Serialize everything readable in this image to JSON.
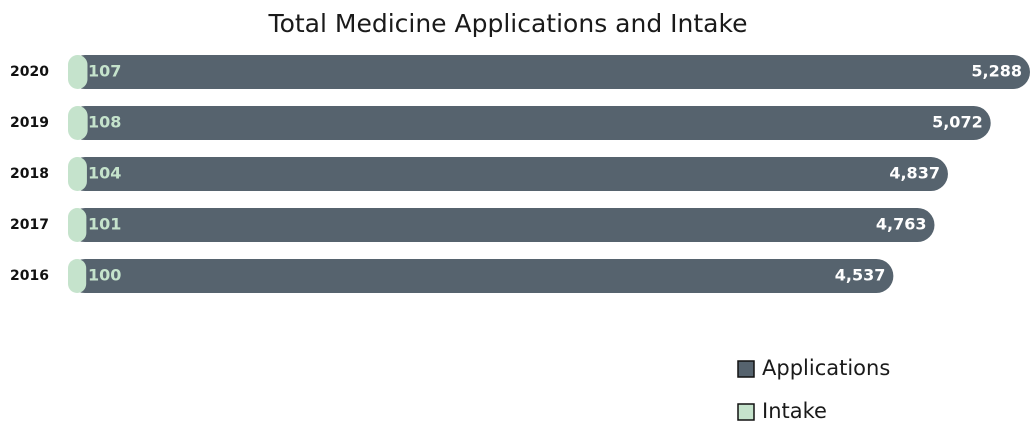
{
  "chart_data": {
    "type": "bar",
    "orientation": "horizontal",
    "title": "Total Medicine Applications and Intake",
    "categories": [
      "2020",
      "2019",
      "2018",
      "2017",
      "2016"
    ],
    "series": [
      {
        "name": "Applications",
        "color": "#56636e",
        "values": [
          5288,
          5072,
          4837,
          4763,
          4537
        ],
        "value_labels": [
          "5,288",
          "5,072",
          "4,837",
          "4,763",
          "4,537"
        ]
      },
      {
        "name": "Intake",
        "color": "#c5e3cc",
        "values": [
          107,
          108,
          104,
          101,
          100
        ]
      }
    ]
  }
}
